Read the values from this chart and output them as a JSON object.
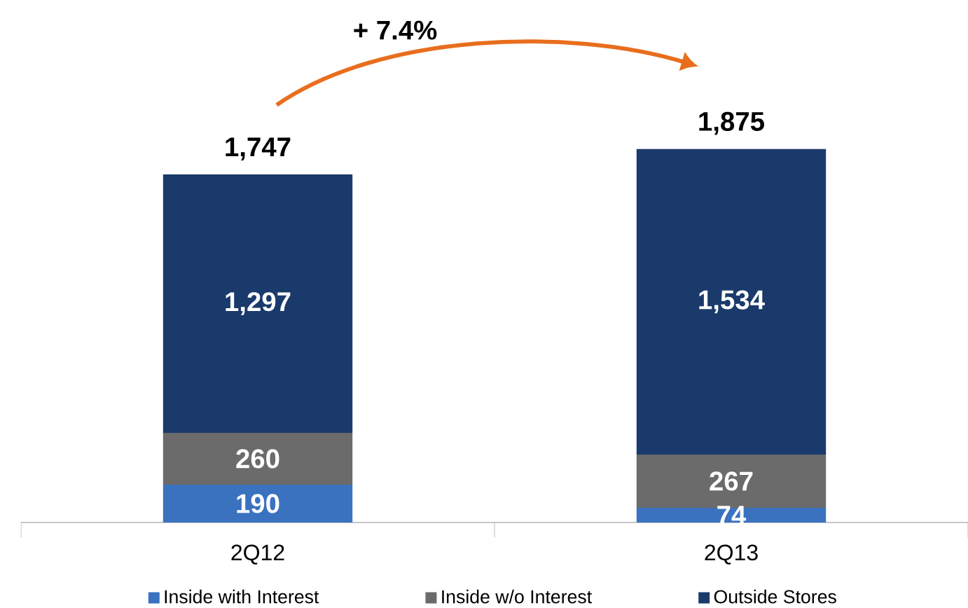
{
  "chart_data": {
    "type": "bar",
    "stacked": true,
    "categories": [
      "2Q12",
      "2Q13"
    ],
    "series": [
      {
        "name": "Inside with Interest",
        "color": "#3a72c0",
        "values": [
          190,
          74
        ],
        "value_labels": [
          "190",
          "74"
        ]
      },
      {
        "name": "Inside w/o Interest",
        "color": "#6b6b6b",
        "values": [
          260,
          267
        ],
        "value_labels": [
          "260",
          "267"
        ]
      },
      {
        "name": "Outside Stores",
        "color": "#1b3a6c",
        "values": [
          1297,
          1534
        ],
        "value_labels": [
          "1,297",
          "1,534"
        ]
      }
    ],
    "totals": [
      "1,747",
      "1,875"
    ],
    "annotations": [
      "+ 7.4%"
    ],
    "legend": "bottom"
  }
}
